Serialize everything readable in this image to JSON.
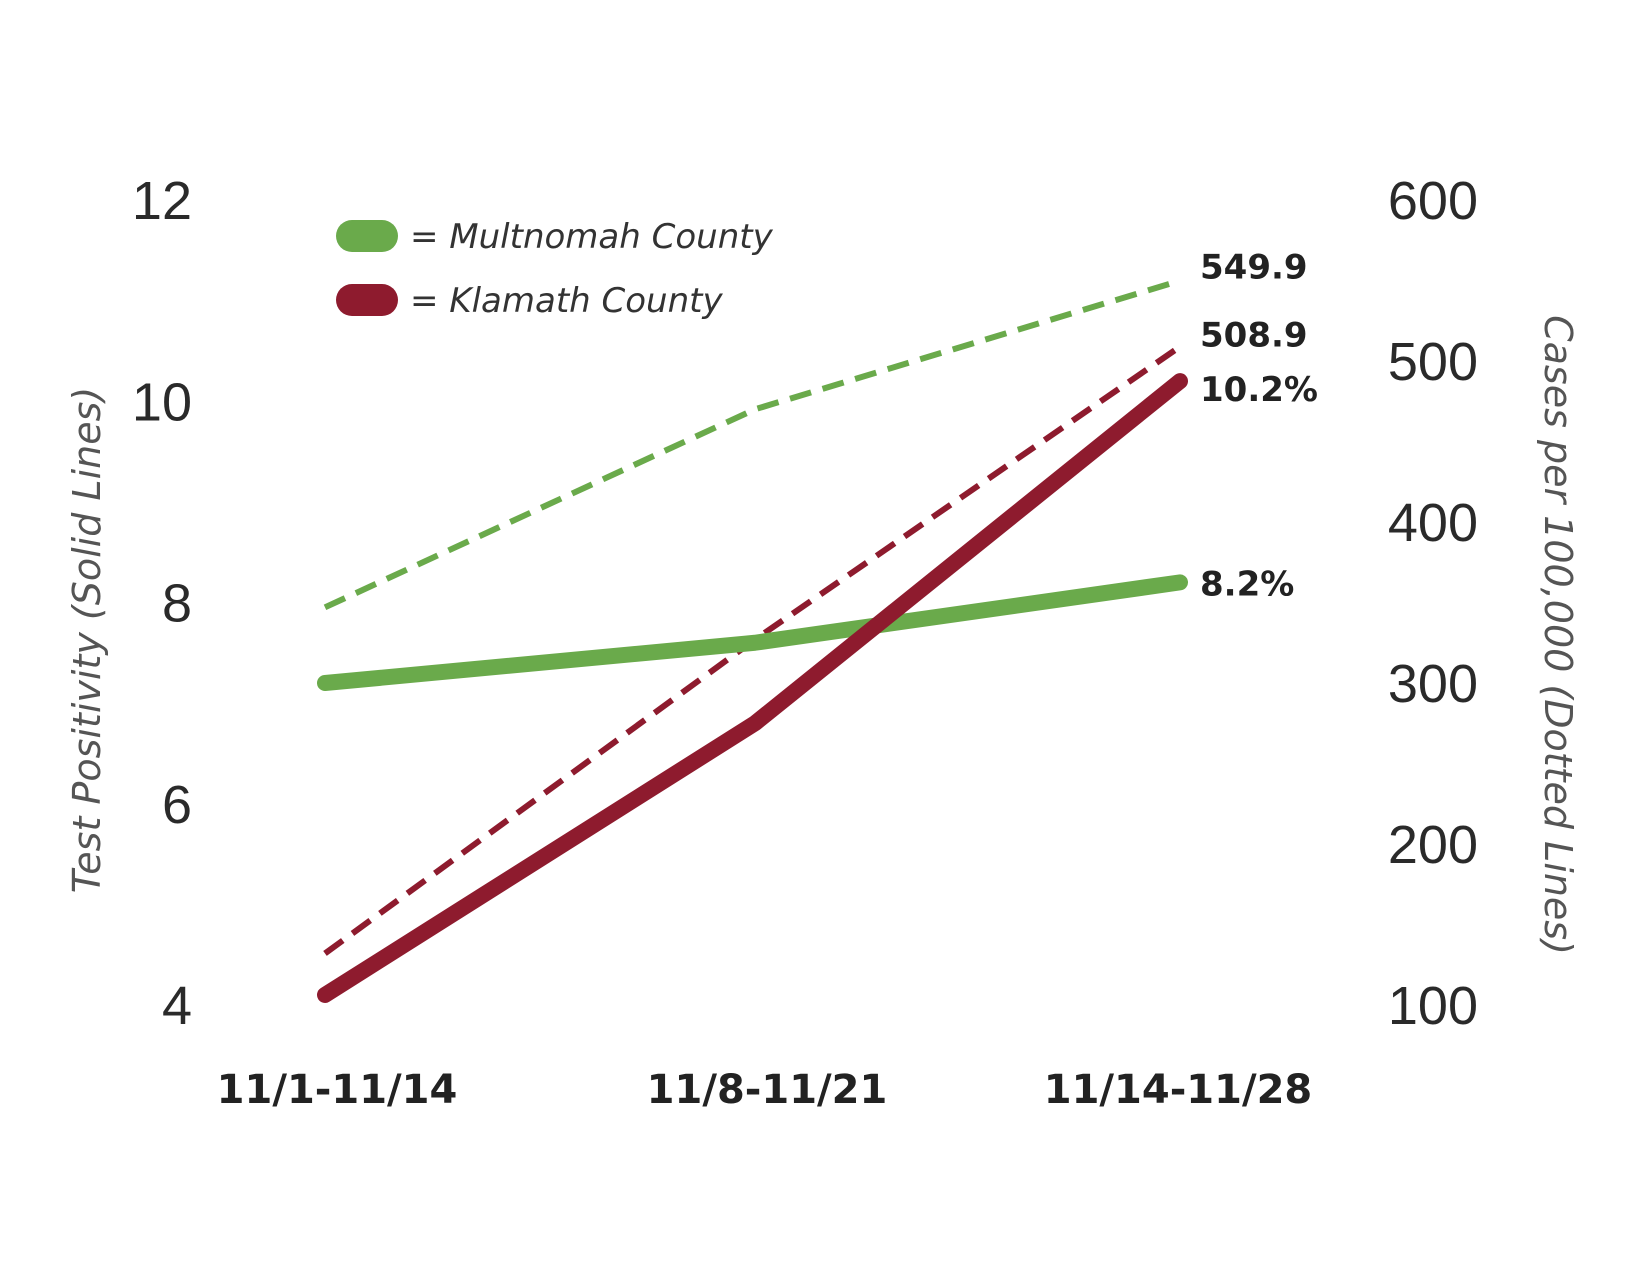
{
  "chart_data": {
    "type": "line",
    "categories": [
      "11/1-11/14",
      "11/8-11/21",
      "11/14-11/28"
    ],
    "left_axis": {
      "label": "Test Positivity (Solid Lines)",
      "range": [
        4,
        12
      ],
      "ticks": [
        "4",
        "6",
        "8",
        "10",
        "12"
      ]
    },
    "right_axis": {
      "label": "Cases per 100,000 (Dotted Lines)",
      "range": [
        100,
        600
      ],
      "ticks": [
        "100",
        "200",
        "300",
        "400",
        "500",
        "600"
      ]
    },
    "grid": false,
    "legend_position": "top-left",
    "legend": [
      {
        "label": "= Multnomah County",
        "color": "#6aaa4b"
      },
      {
        "label": "= Klamath County",
        "color": "#8e1b2e"
      }
    ],
    "series": [
      {
        "county": "Multnomah",
        "metric": "test_positivity",
        "axis": "left",
        "style": "solid",
        "color": "#6aaa4b",
        "values": [
          7.2,
          7.6,
          8.2
        ],
        "end_label": "8.2%"
      },
      {
        "county": "Klamath",
        "metric": "test_positivity",
        "axis": "left",
        "style": "solid",
        "color": "#8e1b2e",
        "values": [
          4.1,
          6.8,
          10.2
        ],
        "end_label": "10.2%"
      },
      {
        "county": "Multnomah",
        "metric": "cases_per_100k",
        "axis": "right",
        "style": "dashed",
        "color": "#6aaa4b",
        "values": [
          347,
          470,
          549.9
        ],
        "end_label": "549.9"
      },
      {
        "county": "Klamath",
        "metric": "cases_per_100k",
        "axis": "right",
        "style": "dashed",
        "color": "#8e1b2e",
        "values": [
          132,
          327,
          508.9
        ],
        "end_label": "508.9"
      }
    ]
  }
}
